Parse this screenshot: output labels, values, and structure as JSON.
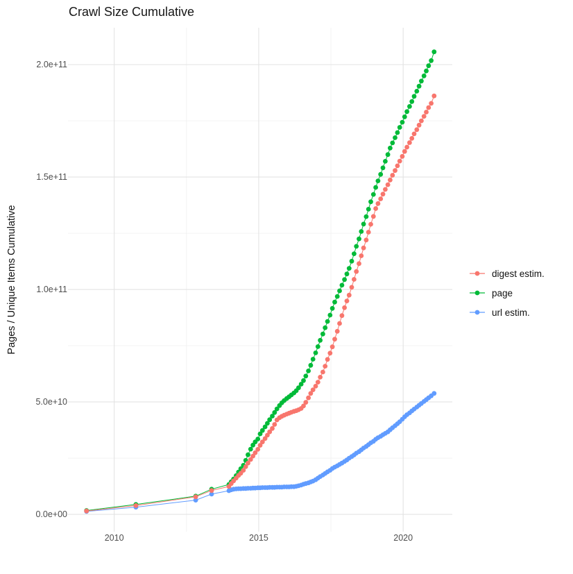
{
  "chart_data": {
    "type": "scatter",
    "title": "Crawl Size Cumulative",
    "xlabel": "",
    "ylabel": "Pages / Unique Items Cumulative",
    "grid": true,
    "legend_position": "right",
    "unit": "values in billions (1e9) of pages / unique items",
    "x_domain": [
      2008.4,
      2021.7
    ],
    "y_domain_e9": [
      -7.7,
      216.4
    ],
    "x_ticks": {
      "values": [
        2010,
        2015,
        2020
      ],
      "labels": [
        "2010",
        "2015",
        "2020"
      ]
    },
    "x_minor_ticks": [
      2012.5,
      2017.5
    ],
    "y_ticks": {
      "values_e9": [
        0,
        50,
        100,
        150,
        200
      ],
      "labels": [
        "0.0e+00",
        "5.0e+10",
        "1.0e+11",
        "1.5e+11",
        "2.0e+11"
      ]
    },
    "y_minor_ticks_e9": [
      25,
      75,
      125,
      175
    ],
    "series": [
      {
        "name": "digest estim.",
        "color": "#F8766D",
        "points": [
          [
            2009.04,
            1.5
          ],
          [
            2010.75,
            3.9
          ],
          [
            2012.82,
            7.8
          ],
          [
            2013.37,
            10.6
          ],
          [
            2013.97,
            12.4
          ],
          [
            2014.05,
            13.7
          ],
          [
            2014.13,
            14.9
          ],
          [
            2014.22,
            16.1
          ],
          [
            2014.3,
            17.3
          ],
          [
            2014.38,
            18.3
          ],
          [
            2014.47,
            19.6
          ],
          [
            2014.55,
            21.2
          ],
          [
            2014.63,
            22.8
          ],
          [
            2014.72,
            24.4
          ],
          [
            2014.8,
            25.9
          ],
          [
            2014.88,
            27.4
          ],
          [
            2014.97,
            28.9
          ],
          [
            2015.05,
            30.7
          ],
          [
            2015.13,
            32.2
          ],
          [
            2015.22,
            33.7
          ],
          [
            2015.3,
            35.2
          ],
          [
            2015.38,
            36.7
          ],
          [
            2015.47,
            38.2
          ],
          [
            2015.55,
            40.0
          ],
          [
            2015.63,
            42.0
          ],
          [
            2015.72,
            43.0
          ],
          [
            2015.8,
            43.6
          ],
          [
            2015.88,
            44.1
          ],
          [
            2015.97,
            44.6
          ],
          [
            2016.05,
            45.0
          ],
          [
            2016.13,
            45.4
          ],
          [
            2016.22,
            45.8
          ],
          [
            2016.3,
            46.1
          ],
          [
            2016.38,
            46.5
          ],
          [
            2016.47,
            47.1
          ],
          [
            2016.55,
            48.2
          ],
          [
            2016.63,
            49.8
          ],
          [
            2016.72,
            51.8
          ],
          [
            2016.8,
            53.8
          ],
          [
            2016.88,
            55.4
          ],
          [
            2016.97,
            57.0
          ],
          [
            2017.05,
            58.8
          ],
          [
            2017.13,
            61.0
          ],
          [
            2017.22,
            63.3
          ],
          [
            2017.3,
            65.9
          ],
          [
            2017.38,
            68.9
          ],
          [
            2017.47,
            71.7
          ],
          [
            2017.55,
            74.5
          ],
          [
            2017.63,
            77.9
          ],
          [
            2017.72,
            81.4
          ],
          [
            2017.8,
            84.9
          ],
          [
            2017.88,
            88.4
          ],
          [
            2017.97,
            91.9
          ],
          [
            2018.05,
            94.9
          ],
          [
            2018.13,
            97.5
          ],
          [
            2018.22,
            101.0
          ],
          [
            2018.3,
            104.5
          ],
          [
            2018.38,
            108.0
          ],
          [
            2018.47,
            111.5
          ],
          [
            2018.55,
            115.0
          ],
          [
            2018.63,
            118.5
          ],
          [
            2018.72,
            122.0
          ],
          [
            2018.8,
            125.5
          ],
          [
            2018.88,
            129.0
          ],
          [
            2018.97,
            132.5
          ],
          [
            2019.05,
            136.0
          ],
          [
            2019.13,
            138.2
          ],
          [
            2019.22,
            140.3
          ],
          [
            2019.3,
            142.4
          ],
          [
            2019.38,
            144.5
          ],
          [
            2019.47,
            146.6
          ],
          [
            2019.55,
            148.7
          ],
          [
            2019.63,
            150.8
          ],
          [
            2019.72,
            152.9
          ],
          [
            2019.8,
            155.0
          ],
          [
            2019.88,
            157.1
          ],
          [
            2019.97,
            159.2
          ],
          [
            2020.05,
            161.4
          ],
          [
            2020.13,
            163.3
          ],
          [
            2020.22,
            165.3
          ],
          [
            2020.3,
            167.2
          ],
          [
            2020.38,
            169.2
          ],
          [
            2020.47,
            171.1
          ],
          [
            2020.55,
            173.1
          ],
          [
            2020.63,
            175.0
          ],
          [
            2020.72,
            177.0
          ],
          [
            2020.8,
            178.9
          ],
          [
            2020.88,
            180.9
          ],
          [
            2020.97,
            182.8
          ],
          [
            2021.07,
            186.1
          ]
        ]
      },
      {
        "name": "page",
        "color": "#00BA38",
        "points": [
          [
            2009.04,
            1.7
          ],
          [
            2010.75,
            4.4
          ],
          [
            2012.82,
            8.1
          ],
          [
            2013.37,
            11.2
          ],
          [
            2013.97,
            13.3
          ],
          [
            2014.05,
            14.5
          ],
          [
            2014.13,
            15.7
          ],
          [
            2014.22,
            17.2
          ],
          [
            2014.3,
            18.8
          ],
          [
            2014.38,
            20.3
          ],
          [
            2014.47,
            21.8
          ],
          [
            2014.55,
            24.0
          ],
          [
            2014.63,
            26.5
          ],
          [
            2014.72,
            29.0
          ],
          [
            2014.8,
            30.8
          ],
          [
            2014.88,
            32.2
          ],
          [
            2014.97,
            33.5
          ],
          [
            2015.05,
            35.8
          ],
          [
            2015.13,
            37.3
          ],
          [
            2015.22,
            38.9
          ],
          [
            2015.3,
            40.5
          ],
          [
            2015.38,
            42.1
          ],
          [
            2015.47,
            43.7
          ],
          [
            2015.55,
            45.3
          ],
          [
            2015.63,
            46.9
          ],
          [
            2015.72,
            48.4
          ],
          [
            2015.8,
            49.6
          ],
          [
            2015.88,
            50.6
          ],
          [
            2015.97,
            51.5
          ],
          [
            2016.05,
            52.3
          ],
          [
            2016.13,
            53.1
          ],
          [
            2016.22,
            54.0
          ],
          [
            2016.3,
            55.0
          ],
          [
            2016.38,
            56.3
          ],
          [
            2016.47,
            57.9
          ],
          [
            2016.55,
            59.5
          ],
          [
            2016.63,
            61.5
          ],
          [
            2016.72,
            63.8
          ],
          [
            2016.8,
            66.3
          ],
          [
            2016.88,
            69.0
          ],
          [
            2016.97,
            71.8
          ],
          [
            2017.05,
            74.6
          ],
          [
            2017.13,
            77.4
          ],
          [
            2017.22,
            80.2
          ],
          [
            2017.3,
            83.0
          ],
          [
            2017.38,
            85.8
          ],
          [
            2017.47,
            88.6
          ],
          [
            2017.55,
            91.6
          ],
          [
            2017.63,
            94.4
          ],
          [
            2017.72,
            96.9
          ],
          [
            2017.8,
            99.4
          ],
          [
            2017.88,
            101.9
          ],
          [
            2017.97,
            104.4
          ],
          [
            2018.05,
            106.9
          ],
          [
            2018.13,
            109.4
          ],
          [
            2018.22,
            112.6
          ],
          [
            2018.3,
            115.9
          ],
          [
            2018.38,
            119.2
          ],
          [
            2018.47,
            122.5
          ],
          [
            2018.55,
            125.8
          ],
          [
            2018.63,
            129.1
          ],
          [
            2018.72,
            132.4
          ],
          [
            2018.8,
            135.7
          ],
          [
            2018.88,
            139.0
          ],
          [
            2018.97,
            142.3
          ],
          [
            2019.05,
            145.4
          ],
          [
            2019.13,
            148.3
          ],
          [
            2019.22,
            151.2
          ],
          [
            2019.3,
            154.1
          ],
          [
            2019.38,
            157.0
          ],
          [
            2019.47,
            160.0
          ],
          [
            2019.55,
            162.9
          ],
          [
            2019.63,
            165.2
          ],
          [
            2019.72,
            167.5
          ],
          [
            2019.8,
            169.8
          ],
          [
            2019.88,
            172.1
          ],
          [
            2019.97,
            174.4
          ],
          [
            2020.05,
            176.8
          ],
          [
            2020.13,
            179.1
          ],
          [
            2020.22,
            181.4
          ],
          [
            2020.3,
            183.6
          ],
          [
            2020.38,
            185.9
          ],
          [
            2020.47,
            188.2
          ],
          [
            2020.55,
            190.4
          ],
          [
            2020.63,
            192.7
          ],
          [
            2020.72,
            195.0
          ],
          [
            2020.8,
            197.2
          ],
          [
            2020.88,
            199.5
          ],
          [
            2020.97,
            201.8
          ],
          [
            2021.07,
            205.7
          ]
        ]
      },
      {
        "name": "url estim.",
        "color": "#619CFF",
        "points": [
          [
            2009.04,
            1.3
          ],
          [
            2010.75,
            3.2
          ],
          [
            2012.82,
            6.3
          ],
          [
            2013.37,
            9.0
          ],
          [
            2013.97,
            10.5
          ],
          [
            2014.05,
            10.9
          ],
          [
            2014.13,
            11.2
          ],
          [
            2014.22,
            11.3
          ],
          [
            2014.3,
            11.4
          ],
          [
            2014.38,
            11.4
          ],
          [
            2014.47,
            11.5
          ],
          [
            2014.55,
            11.5
          ],
          [
            2014.63,
            11.6
          ],
          [
            2014.72,
            11.6
          ],
          [
            2014.8,
            11.7
          ],
          [
            2014.88,
            11.7
          ],
          [
            2014.97,
            11.8
          ],
          [
            2015.05,
            11.8
          ],
          [
            2015.13,
            11.9
          ],
          [
            2015.22,
            11.9
          ],
          [
            2015.3,
            11.9
          ],
          [
            2015.38,
            12.0
          ],
          [
            2015.47,
            12.0
          ],
          [
            2015.55,
            12.0
          ],
          [
            2015.63,
            12.1
          ],
          [
            2015.72,
            12.1
          ],
          [
            2015.8,
            12.1
          ],
          [
            2015.88,
            12.2
          ],
          [
            2015.97,
            12.2
          ],
          [
            2016.05,
            12.2
          ],
          [
            2016.13,
            12.3
          ],
          [
            2016.22,
            12.3
          ],
          [
            2016.3,
            12.5
          ],
          [
            2016.38,
            12.7
          ],
          [
            2016.47,
            13.0
          ],
          [
            2016.55,
            13.4
          ],
          [
            2016.63,
            13.7
          ],
          [
            2016.72,
            14.0
          ],
          [
            2016.8,
            14.4
          ],
          [
            2016.88,
            14.8
          ],
          [
            2016.97,
            15.4
          ],
          [
            2017.05,
            16.1
          ],
          [
            2017.13,
            16.8
          ],
          [
            2017.22,
            17.5
          ],
          [
            2017.3,
            18.2
          ],
          [
            2017.38,
            18.9
          ],
          [
            2017.47,
            19.6
          ],
          [
            2017.55,
            20.4
          ],
          [
            2017.63,
            21.0
          ],
          [
            2017.72,
            21.6
          ],
          [
            2017.8,
            22.2
          ],
          [
            2017.88,
            22.8
          ],
          [
            2017.97,
            23.5
          ],
          [
            2018.05,
            24.2
          ],
          [
            2018.13,
            25.0
          ],
          [
            2018.22,
            25.7
          ],
          [
            2018.3,
            26.4
          ],
          [
            2018.38,
            27.2
          ],
          [
            2018.47,
            27.9
          ],
          [
            2018.55,
            28.7
          ],
          [
            2018.63,
            29.5
          ],
          [
            2018.72,
            30.2
          ],
          [
            2018.8,
            31.0
          ],
          [
            2018.88,
            31.8
          ],
          [
            2018.97,
            32.5
          ],
          [
            2019.05,
            33.4
          ],
          [
            2019.13,
            34.1
          ],
          [
            2019.22,
            34.7
          ],
          [
            2019.3,
            35.4
          ],
          [
            2019.38,
            36.0
          ],
          [
            2019.47,
            36.7
          ],
          [
            2019.55,
            37.6
          ],
          [
            2019.63,
            38.5
          ],
          [
            2019.72,
            39.4
          ],
          [
            2019.8,
            40.3
          ],
          [
            2019.88,
            41.2
          ],
          [
            2019.97,
            42.3
          ],
          [
            2020.05,
            43.4
          ],
          [
            2020.13,
            44.3
          ],
          [
            2020.22,
            45.1
          ],
          [
            2020.3,
            46.0
          ],
          [
            2020.38,
            46.8
          ],
          [
            2020.47,
            47.7
          ],
          [
            2020.55,
            48.5
          ],
          [
            2020.63,
            49.3
          ],
          [
            2020.72,
            50.2
          ],
          [
            2020.8,
            51.0
          ],
          [
            2020.88,
            51.8
          ],
          [
            2020.97,
            52.7
          ],
          [
            2021.07,
            53.8
          ]
        ]
      }
    ],
    "colors": {
      "major_grid": "#E3E3E3",
      "minor_grid": "#F0F0F0",
      "digest": "#F8766D",
      "page": "#00BA38",
      "url": "#619CFF"
    }
  }
}
